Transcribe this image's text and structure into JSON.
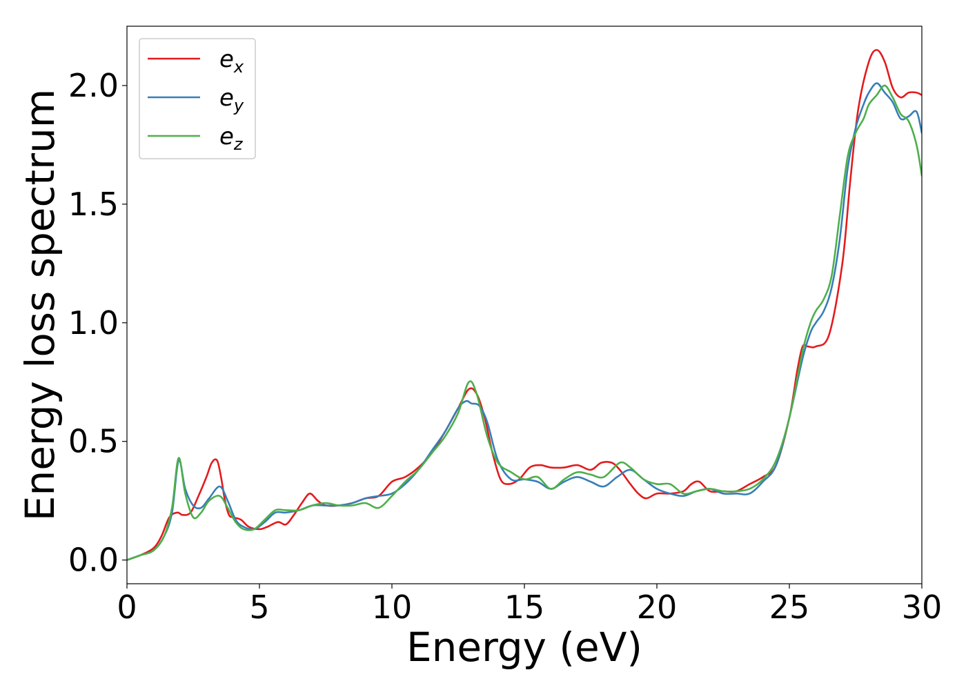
{
  "chart_data": {
    "type": "line",
    "title": "",
    "xlabel": "Energy (eV)",
    "ylabel": "Energy loss spectrum",
    "xlim": [
      0,
      30
    ],
    "ylim": [
      -0.1,
      2.25
    ],
    "xticks": [
      0,
      5,
      10,
      15,
      20,
      25,
      30
    ],
    "yticks": [
      0.0,
      0.5,
      1.0,
      1.5,
      2.0
    ],
    "xtick_labels": [
      "0",
      "5",
      "10",
      "15",
      "20",
      "25",
      "30"
    ],
    "ytick_labels": [
      "0.0",
      "0.5",
      "1.0",
      "1.5",
      "2.0"
    ],
    "grid": false,
    "legend_position": "top-left",
    "series": [
      {
        "name": "e_x",
        "label_base": "e",
        "label_sub": "x",
        "color": "#e41a1c",
        "x": [
          0,
          0.5,
          1.0,
          1.3,
          1.6,
          1.9,
          2.1,
          2.4,
          2.7,
          3.0,
          3.2,
          3.4,
          3.55,
          3.7,
          3.85,
          4.0,
          4.3,
          4.6,
          5.0,
          5.3,
          5.7,
          6.0,
          6.3,
          6.6,
          6.9,
          7.2,
          7.5,
          8.0,
          8.5,
          9.0,
          9.5,
          10.0,
          10.5,
          11.0,
          11.5,
          12.0,
          12.5,
          12.9,
          13.2,
          13.5,
          13.8,
          14.1,
          14.4,
          14.8,
          15.2,
          15.6,
          16.0,
          16.5,
          17.0,
          17.5,
          17.9,
          18.3,
          18.6,
          19.0,
          19.3,
          19.6,
          20.0,
          20.5,
          21.0,
          21.3,
          21.6,
          22.0,
          22.5,
          23.0,
          23.5,
          24.0,
          24.5,
          25.0,
          25.3,
          25.5,
          25.7,
          26.0,
          26.5,
          27.0,
          27.3,
          27.6,
          28.0,
          28.3,
          28.6,
          28.9,
          29.2,
          29.5,
          29.8,
          30.0
        ],
        "y": [
          0.0,
          0.02,
          0.05,
          0.1,
          0.18,
          0.2,
          0.19,
          0.2,
          0.27,
          0.35,
          0.41,
          0.42,
          0.35,
          0.25,
          0.19,
          0.18,
          0.17,
          0.14,
          0.13,
          0.14,
          0.16,
          0.15,
          0.19,
          0.24,
          0.28,
          0.25,
          0.23,
          0.23,
          0.24,
          0.26,
          0.27,
          0.33,
          0.35,
          0.39,
          0.45,
          0.54,
          0.64,
          0.72,
          0.7,
          0.6,
          0.45,
          0.34,
          0.32,
          0.34,
          0.39,
          0.4,
          0.39,
          0.39,
          0.4,
          0.38,
          0.41,
          0.41,
          0.38,
          0.32,
          0.28,
          0.26,
          0.28,
          0.28,
          0.29,
          0.32,
          0.33,
          0.29,
          0.29,
          0.29,
          0.32,
          0.35,
          0.4,
          0.6,
          0.8,
          0.9,
          0.9,
          0.9,
          0.95,
          1.25,
          1.6,
          1.9,
          2.1,
          2.15,
          2.1,
          1.99,
          1.95,
          1.97,
          1.97,
          1.96
        ]
      },
      {
        "name": "e_y",
        "label_base": "e",
        "label_sub": "y",
        "color": "#377eb8",
        "x": [
          0,
          0.5,
          1.0,
          1.4,
          1.7,
          1.95,
          2.2,
          2.5,
          2.8,
          3.1,
          3.5,
          3.8,
          4.1,
          4.4,
          4.8,
          5.2,
          5.6,
          6.0,
          6.5,
          7.0,
          7.5,
          8.0,
          8.5,
          9.0,
          9.5,
          10.0,
          10.5,
          11.0,
          11.5,
          12.0,
          12.5,
          12.8,
          13.0,
          13.3,
          13.6,
          14.0,
          14.5,
          15.0,
          15.5,
          16.0,
          16.5,
          17.0,
          17.5,
          18.0,
          18.5,
          19.0,
          19.5,
          20.0,
          20.5,
          21.0,
          21.5,
          22.0,
          22.5,
          23.0,
          23.5,
          24.0,
          24.5,
          25.0,
          25.5,
          25.8,
          26.0,
          26.3,
          26.6,
          26.9,
          27.2,
          27.5,
          27.8,
          28.0,
          28.3,
          28.6,
          28.9,
          29.2,
          29.5,
          29.8,
          30.0
        ],
        "y": [
          0.0,
          0.02,
          0.04,
          0.1,
          0.2,
          0.42,
          0.3,
          0.23,
          0.22,
          0.26,
          0.31,
          0.25,
          0.17,
          0.14,
          0.13,
          0.16,
          0.2,
          0.2,
          0.21,
          0.23,
          0.23,
          0.23,
          0.24,
          0.26,
          0.27,
          0.28,
          0.32,
          0.38,
          0.46,
          0.54,
          0.64,
          0.67,
          0.66,
          0.65,
          0.58,
          0.42,
          0.34,
          0.34,
          0.33,
          0.3,
          0.33,
          0.35,
          0.33,
          0.31,
          0.35,
          0.38,
          0.34,
          0.3,
          0.28,
          0.27,
          0.29,
          0.3,
          0.28,
          0.28,
          0.28,
          0.33,
          0.4,
          0.6,
          0.85,
          0.96,
          1.0,
          1.05,
          1.15,
          1.35,
          1.65,
          1.82,
          1.92,
          1.97,
          2.01,
          1.97,
          1.93,
          1.86,
          1.87,
          1.89,
          1.8
        ]
      },
      {
        "name": "e_z",
        "label_base": "e",
        "label_sub": "z",
        "color": "#4daf4a",
        "x": [
          0,
          0.5,
          1.0,
          1.4,
          1.7,
          1.95,
          2.2,
          2.5,
          2.8,
          3.1,
          3.5,
          3.8,
          4.1,
          4.4,
          4.8,
          5.2,
          5.6,
          6.0,
          6.5,
          7.0,
          7.5,
          8.0,
          8.5,
          9.0,
          9.5,
          10.0,
          10.5,
          11.0,
          11.5,
          12.0,
          12.5,
          12.9,
          13.2,
          13.6,
          14.0,
          14.5,
          15.0,
          15.5,
          16.0,
          16.5,
          17.0,
          17.5,
          18.0,
          18.6,
          19.0,
          19.5,
          20.0,
          20.5,
          21.0,
          21.5,
          22.0,
          22.5,
          23.0,
          23.5,
          24.0,
          24.5,
          25.0,
          25.5,
          25.8,
          26.0,
          26.3,
          26.6,
          26.9,
          27.2,
          27.5,
          27.8,
          28.0,
          28.3,
          28.6,
          28.9,
          29.2,
          29.5,
          29.8,
          30.0
        ],
        "y": [
          0.0,
          0.02,
          0.04,
          0.1,
          0.22,
          0.43,
          0.28,
          0.18,
          0.2,
          0.25,
          0.27,
          0.22,
          0.16,
          0.13,
          0.13,
          0.17,
          0.21,
          0.21,
          0.21,
          0.23,
          0.24,
          0.23,
          0.23,
          0.24,
          0.22,
          0.27,
          0.33,
          0.38,
          0.45,
          0.52,
          0.62,
          0.75,
          0.7,
          0.52,
          0.41,
          0.37,
          0.34,
          0.35,
          0.3,
          0.34,
          0.37,
          0.36,
          0.35,
          0.41,
          0.39,
          0.34,
          0.32,
          0.32,
          0.28,
          0.29,
          0.3,
          0.29,
          0.29,
          0.3,
          0.34,
          0.42,
          0.6,
          0.88,
          1.0,
          1.05,
          1.1,
          1.2,
          1.45,
          1.7,
          1.8,
          1.86,
          1.92,
          1.96,
          2.0,
          1.95,
          1.88,
          1.85,
          1.75,
          1.62
        ]
      }
    ]
  }
}
